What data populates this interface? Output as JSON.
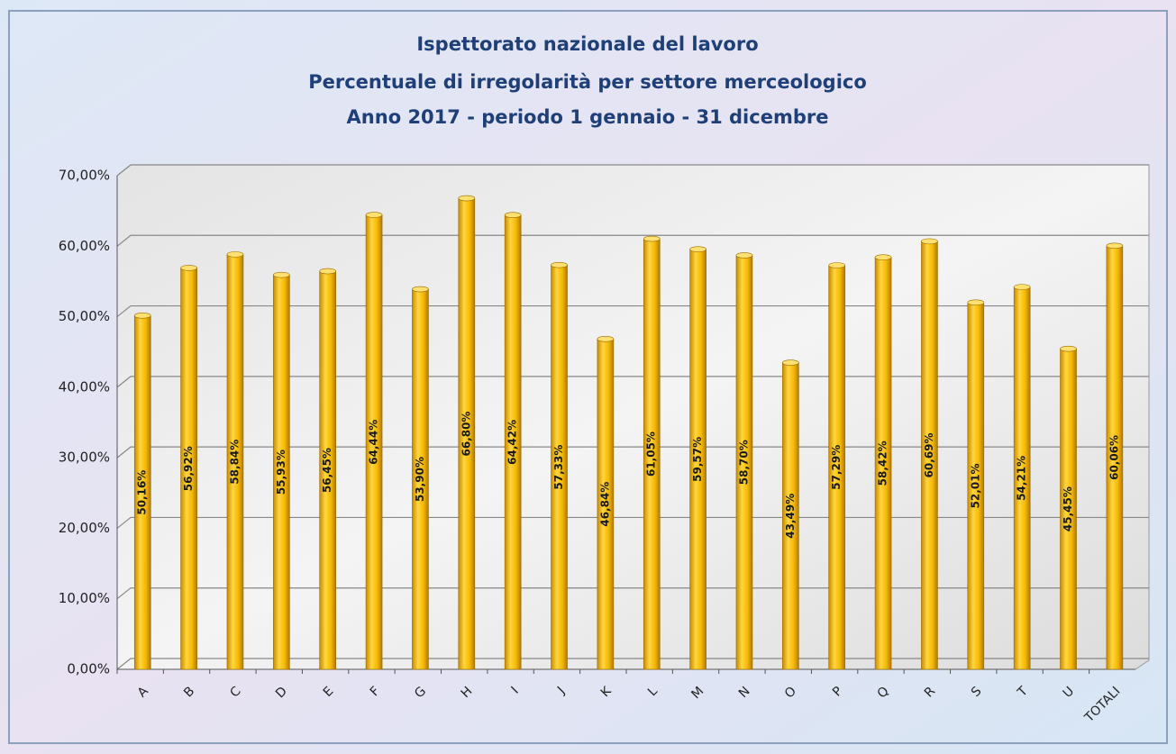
{
  "chart_data": {
    "type": "bar",
    "title": [
      "Ispettorato nazionale del lavoro",
      "Percentuale di irregolarità per settore merceologico",
      "Anno 2017 - periodo 1 gennaio - 31 dicembre"
    ],
    "categories": [
      "A",
      "B",
      "C",
      "D",
      "E",
      "F",
      "G",
      "H",
      "I",
      "J",
      "K",
      "L",
      "M",
      "N",
      "O",
      "P",
      "Q",
      "R",
      "S",
      "T",
      "U",
      "TOTALI"
    ],
    "values": [
      50.16,
      56.92,
      58.84,
      55.93,
      56.45,
      64.44,
      53.9,
      66.8,
      64.42,
      57.33,
      46.84,
      61.05,
      59.57,
      58.7,
      43.49,
      57.29,
      58.42,
      60.69,
      52.01,
      54.21,
      45.45,
      60.06
    ],
    "value_labels": [
      "50,16%",
      "56,92%",
      "58,84%",
      "55,93%",
      "56,45%",
      "64,44%",
      "53,90%",
      "66,80%",
      "64,42%",
      "57,33%",
      "46,84%",
      "61,05%",
      "59,57%",
      "58,70%",
      "43,49%",
      "57,29%",
      "58,42%",
      "60,69%",
      "52,01%",
      "54,21%",
      "45,45%",
      "60,06%"
    ],
    "color": "#f5b800",
    "ylim": [
      0,
      70
    ],
    "yticks": [
      {
        "value": 0,
        "label": "0,00%"
      },
      {
        "value": 10,
        "label": "10,00%"
      },
      {
        "value": 20,
        "label": "20,00%"
      },
      {
        "value": 30,
        "label": "30,00%"
      },
      {
        "value": 40,
        "label": "40,00%"
      },
      {
        "value": 50,
        "label": "50,00%"
      },
      {
        "value": 60,
        "label": "60,00%"
      },
      {
        "value": 70,
        "label": "70,00%"
      }
    ],
    "grid": true
  }
}
